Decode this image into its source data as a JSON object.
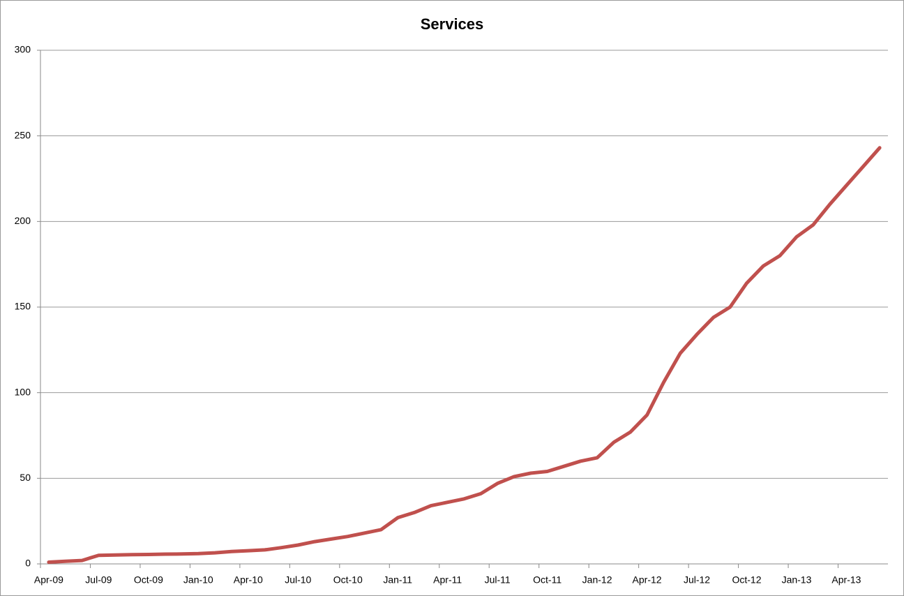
{
  "chart_data": {
    "type": "line",
    "title": "Services",
    "categories": [
      "Apr-09",
      null,
      null,
      "Jul-09",
      null,
      null,
      "Oct-09",
      null,
      null,
      "Jan-10",
      null,
      null,
      "Apr-10",
      null,
      null,
      "Jul-10",
      null,
      null,
      "Oct-10",
      null,
      null,
      "Jan-11",
      null,
      null,
      "Apr-11",
      null,
      null,
      "Jul-11",
      null,
      null,
      "Oct-11",
      null,
      null,
      "Jan-12",
      null,
      null,
      "Apr-12",
      null,
      null,
      "Jul-12",
      null,
      null,
      "Oct-12",
      null,
      null,
      "Jan-13",
      null,
      null,
      "Apr-13",
      null,
      null
    ],
    "values": [
      1,
      1.5,
      2,
      5,
      5.2,
      5.4,
      5.5,
      5.7,
      5.8,
      6,
      6.5,
      7.2,
      7.7,
      8.2,
      9.5,
      11,
      13,
      14.5,
      16,
      18,
      20,
      27,
      30,
      34,
      36,
      38,
      41,
      47,
      51,
      53,
      54,
      57,
      60,
      62,
      71,
      77,
      87,
      106,
      123,
      134,
      144,
      150,
      164,
      174,
      180,
      191,
      198,
      210,
      221,
      232,
      243
    ],
    "color": "#c0504d",
    "ylim": [
      0,
      300
    ],
    "yticks": [
      0,
      50,
      100,
      150,
      200,
      250,
      300
    ],
    "grid": true
  }
}
